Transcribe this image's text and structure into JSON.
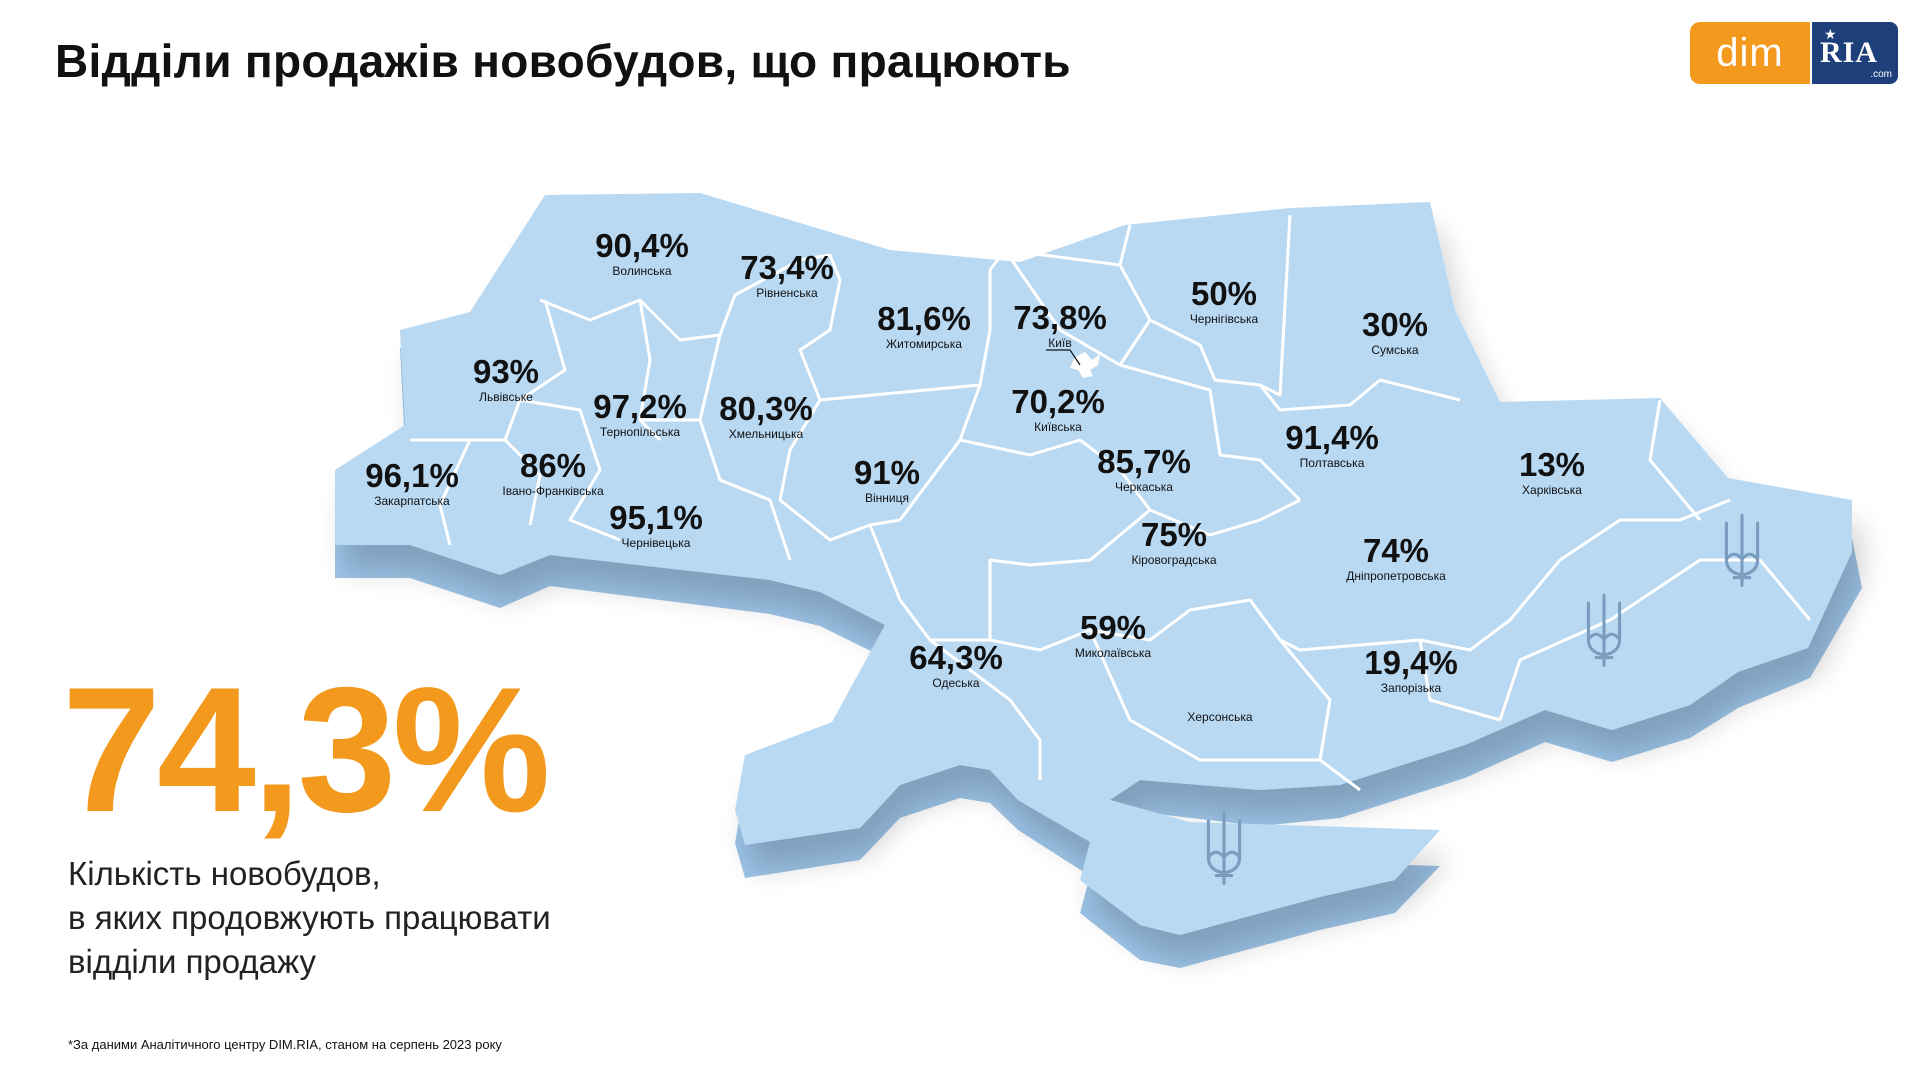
{
  "title": "Відділи продажів новобудов, що працюють",
  "logo": {
    "dim_text": "dim",
    "ria_text": "RIA",
    "ria_suffix": ".com",
    "colors": {
      "dim_bg": "#f39a1e",
      "ria_bg": "#1d3f7a"
    }
  },
  "map": {
    "fill_color": "#b9d9f3",
    "side_color": "#9cc3e6",
    "border_color": "#ffffff",
    "regions": [
      {
        "id": "volynska",
        "pct": "90,4%",
        "name": "Волинська"
      },
      {
        "id": "rivnenska",
        "pct": "73,4%",
        "name": "Рівненська"
      },
      {
        "id": "zhytomyrska",
        "pct": "81,6%",
        "name": "Житомирська"
      },
      {
        "id": "kyiv",
        "pct": "73,8%",
        "name": "Київ"
      },
      {
        "id": "chernihivska",
        "pct": "50%",
        "name": "Чернігівська"
      },
      {
        "id": "sumska",
        "pct": "30%",
        "name": "Сумська"
      },
      {
        "id": "lvivske",
        "pct": "93%",
        "name": "Львівське"
      },
      {
        "id": "ternopilska",
        "pct": "97,2%",
        "name": "Тернопільська"
      },
      {
        "id": "khmelnytska",
        "pct": "80,3%",
        "name": "Хмельницька"
      },
      {
        "id": "kyivska",
        "pct": "70,2%",
        "name": "Київська"
      },
      {
        "id": "poltavska",
        "pct": "91,4%",
        "name": "Полтавська"
      },
      {
        "id": "zakarpatska",
        "pct": "96,1%",
        "name": "Закарпатська"
      },
      {
        "id": "ivano-frankivska",
        "pct": "86%",
        "name": "Івано-Франківська"
      },
      {
        "id": "vinnytsia",
        "pct": "91%",
        "name": "Вінниця"
      },
      {
        "id": "cherkaska",
        "pct": "85,7%",
        "name": "Черкаська"
      },
      {
        "id": "kharkivska",
        "pct": "13%",
        "name": "Харківська"
      },
      {
        "id": "chernivetska",
        "pct": "95,1%",
        "name": "Чернівецька"
      },
      {
        "id": "kirovohradska",
        "pct": "75%",
        "name": "Кіровоградська"
      },
      {
        "id": "dnipropetrovska",
        "pct": "74%",
        "name": "Дніпропетровська"
      },
      {
        "id": "mykolaivska",
        "pct": "59%",
        "name": "Миколаївська"
      },
      {
        "id": "odeska",
        "pct": "64,3%",
        "name": "Одеська"
      },
      {
        "id": "zaporizka",
        "pct": "19,4%",
        "name": "Запорізька"
      },
      {
        "id": "khersonska",
        "pct": "",
        "name": "Херсонська"
      }
    ]
  },
  "big_stat": "74,3%",
  "caption": {
    "line1": "Кількість новобудов,",
    "line2": "в яких продовжують працювати",
    "line3": "відділи продажу"
  },
  "footnote": "*За даними Аналітичного центру DIM.RIA, станом на серпень 2023 року"
}
